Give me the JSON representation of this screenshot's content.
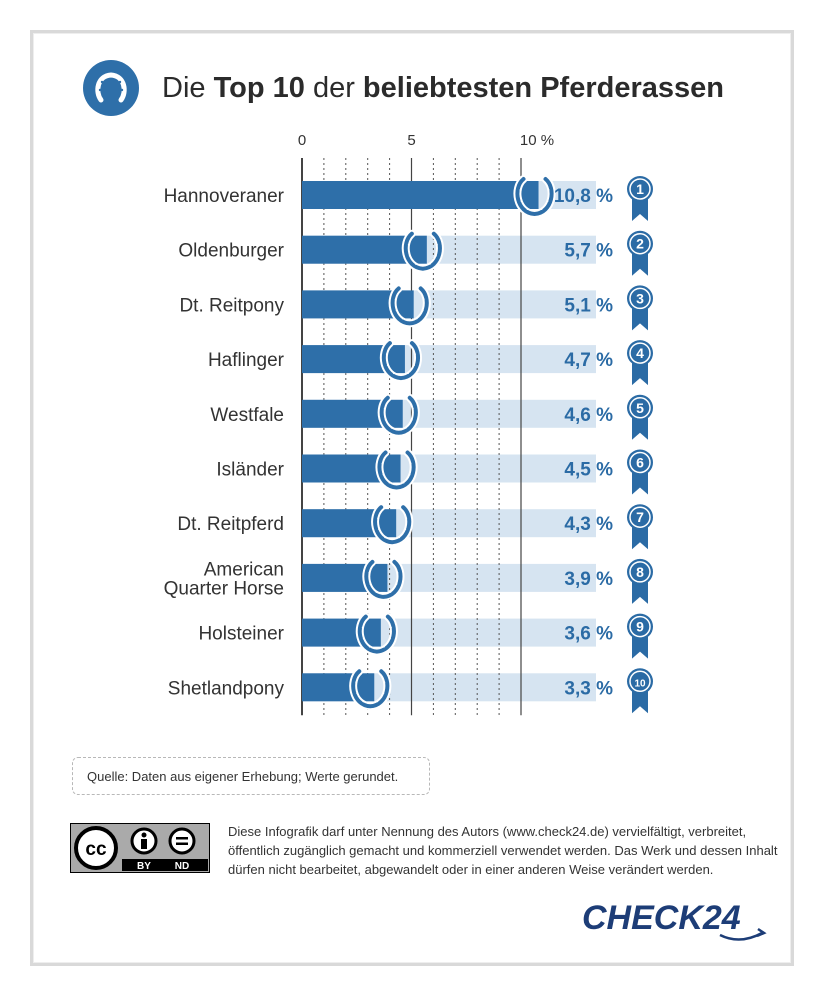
{
  "title": {
    "part1": "Die ",
    "part2_bold": "Top 10",
    "part3": " der ",
    "part4_bold": "beliebtesten Pferderassen"
  },
  "icons": {
    "title": "horseshoe-icon",
    "bar_marker": "horseshoe-icon",
    "rank": "ribbon-badge-icon"
  },
  "colors": {
    "bar": "#2e6fa9",
    "bar_track": "#d6e4f1",
    "accent": "#2b6ba5",
    "text": "#333333",
    "logo": "#1d3d77"
  },
  "chart_data": {
    "type": "bar",
    "orientation": "horizontal",
    "title": "Die Top 10 der beliebtesten Pferderassen",
    "xlim": [
      0,
      10.8
    ],
    "tick_labels": [
      "0",
      "5",
      "10 %"
    ],
    "tick_values": [
      0,
      5,
      10
    ],
    "minor_grid_values": [
      1,
      2,
      3,
      4,
      6,
      7,
      8,
      9
    ],
    "grid": true,
    "categories": [
      {
        "label": [
          "Hannoveraner"
        ],
        "value": 10.8,
        "value_label": "10,8 %",
        "rank": "1"
      },
      {
        "label": [
          "Oldenburger"
        ],
        "value": 5.7,
        "value_label": "5,7 %",
        "rank": "2"
      },
      {
        "label": [
          "Dt. Reitpony"
        ],
        "value": 5.1,
        "value_label": "5,1 %",
        "rank": "3"
      },
      {
        "label": [
          "Haflinger"
        ],
        "value": 4.7,
        "value_label": "4,7 %",
        "rank": "4"
      },
      {
        "label": [
          "Westfale"
        ],
        "value": 4.6,
        "value_label": "4,6 %",
        "rank": "5"
      },
      {
        "label": [
          "Isländer"
        ],
        "value": 4.5,
        "value_label": "4,5 %",
        "rank": "6"
      },
      {
        "label": [
          "Dt. Reitpferd"
        ],
        "value": 4.3,
        "value_label": "4,3 %",
        "rank": "7"
      },
      {
        "label": [
          "American",
          "Quarter Horse"
        ],
        "value": 3.9,
        "value_label": "3,9 %",
        "rank": "8"
      },
      {
        "label": [
          "Holsteiner"
        ],
        "value": 3.6,
        "value_label": "3,6 %",
        "rank": "9"
      },
      {
        "label": [
          "Shetlandpony"
        ],
        "value": 3.3,
        "value_label": "3,3 %",
        "rank": "10"
      }
    ]
  },
  "source": "Quelle: Daten aus eigener Erhebung; Werte gerundet.",
  "license": {
    "badge_labels": [
      "cc",
      "BY",
      "ND"
    ],
    "text": "Diese Infografik darf unter Nennung des Autors (www.check24.de) vervielfältigt, verbreitet, öffentlich zugänglich gemacht und kommerziell verwendet werden. Das Werk und dessen Inhalt dürfen nicht bearbeitet, abgewandelt oder in einer anderen Weise verändert werden."
  },
  "logo": {
    "text": "CHECK24"
  }
}
